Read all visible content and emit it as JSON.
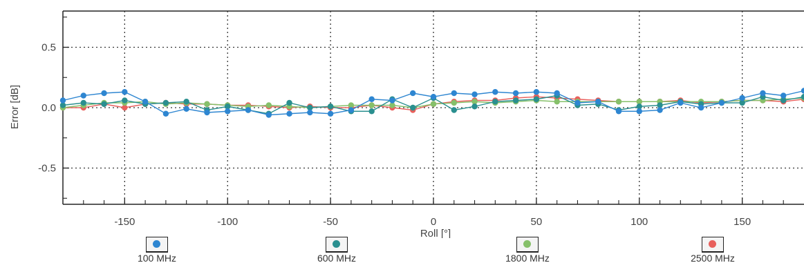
{
  "chart_data": {
    "type": "line",
    "title": "",
    "xlabel": "Roll [°]",
    "ylabel": "Error [dB]",
    "xlim": [
      -180,
      180
    ],
    "ylim": [
      -0.8,
      0.8
    ],
    "xticks": [
      -150,
      -100,
      -50,
      0,
      50,
      100,
      150
    ],
    "yticks": [
      0.5,
      0.0,
      -0.5
    ],
    "xtick_labels": [
      "-150",
      "-100",
      "-50",
      "0",
      "50",
      "100",
      "150"
    ],
    "ytick_labels": [
      "0.5",
      "0.0",
      "-0.5"
    ],
    "grid": true,
    "legend_position": "bottom",
    "x": [
      -180,
      -170,
      -160,
      -150,
      -140,
      -130,
      -120,
      -110,
      -100,
      -90,
      -80,
      -70,
      -60,
      -50,
      -40,
      -30,
      -20,
      -10,
      0,
      10,
      20,
      30,
      40,
      50,
      60,
      70,
      80,
      90,
      100,
      110,
      120,
      130,
      140,
      150,
      160,
      170,
      180
    ],
    "series": [
      {
        "name": "100 MHz",
        "color": "#2e86d1",
        "values": [
          0.06,
          0.1,
          0.12,
          0.13,
          0.05,
          -0.05,
          -0.01,
          -0.04,
          -0.03,
          -0.02,
          -0.06,
          -0.05,
          -0.04,
          -0.05,
          -0.02,
          0.07,
          0.06,
          0.12,
          0.09,
          0.12,
          0.11,
          0.13,
          0.12,
          0.13,
          0.12,
          0.04,
          0.05,
          -0.03,
          -0.03,
          -0.02,
          0.04,
          0.0,
          0.04,
          0.08,
          0.12,
          0.1,
          0.14
        ]
      },
      {
        "name": "600 MHz",
        "color": "#2a8f8f",
        "values": [
          0.02,
          0.04,
          0.03,
          0.06,
          0.03,
          0.04,
          0.05,
          -0.02,
          0.01,
          -0.02,
          -0.05,
          0.04,
          0.0,
          0.01,
          -0.03,
          -0.03,
          0.07,
          0.0,
          0.08,
          -0.02,
          0.01,
          0.05,
          0.06,
          0.07,
          0.1,
          0.02,
          0.03,
          -0.02,
          0.01,
          0.02,
          0.05,
          0.03,
          0.04,
          0.04,
          0.09,
          0.06,
          0.09
        ]
      },
      {
        "name": "1800 MHz",
        "color": "#86c06a",
        "values": [
          0.0,
          0.02,
          0.04,
          0.04,
          0.05,
          0.03,
          0.04,
          0.03,
          0.02,
          0.01,
          0.02,
          0.01,
          0.0,
          0.01,
          0.02,
          0.02,
          0.02,
          0.0,
          0.03,
          0.04,
          0.05,
          0.04,
          0.05,
          0.06,
          0.05,
          0.05,
          0.05,
          0.05,
          0.05,
          0.05,
          0.05,
          0.05,
          0.05,
          0.06,
          0.06,
          0.07,
          0.08
        ]
      },
      {
        "name": "2500 MHz",
        "color": "#e8605c",
        "values": [
          0.0,
          0.0,
          0.03,
          0.0,
          0.03,
          0.04,
          0.03,
          0.03,
          0.02,
          0.02,
          0.01,
          0.0,
          0.01,
          0.0,
          0.0,
          0.02,
          0.0,
          -0.02,
          0.03,
          0.05,
          0.06,
          0.06,
          0.08,
          0.09,
          0.08,
          0.07,
          0.06,
          0.05,
          0.05,
          0.05,
          0.06,
          0.04,
          0.05,
          0.06,
          0.06,
          0.05,
          0.07
        ]
      }
    ]
  }
}
